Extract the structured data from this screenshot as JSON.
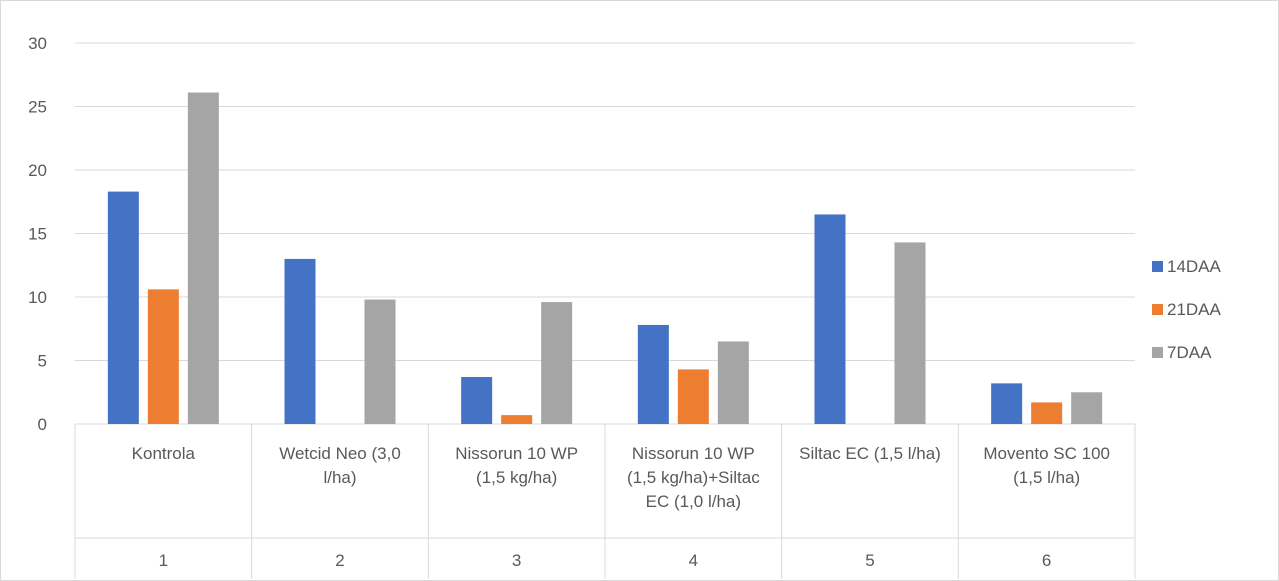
{
  "chart_data": {
    "type": "bar",
    "categories": [
      {
        "number": "1",
        "lines": [
          "Kontrola"
        ]
      },
      {
        "number": "2",
        "lines": [
          "Wetcid Neo (3,0",
          "l/ha)"
        ]
      },
      {
        "number": "3",
        "lines": [
          "Nissorun 10 WP",
          "(1,5 kg/ha)"
        ]
      },
      {
        "number": "4",
        "lines": [
          "Nissorun 10 WP",
          "(1,5 kg/ha)+Siltac",
          "EC (1,0 l/ha)"
        ]
      },
      {
        "number": "5",
        "lines": [
          "Siltac EC (1,5 l/ha)"
        ]
      },
      {
        "number": "6",
        "lines": [
          "Movento SC 100",
          "(1,5 l/ha)"
        ]
      }
    ],
    "series": [
      {
        "name": "14DAA",
        "color": "#4472c4",
        "values": [
          18.3,
          13.0,
          3.7,
          7.8,
          16.5,
          3.2
        ]
      },
      {
        "name": "21DAA",
        "color": "#ed7d31",
        "values": [
          10.6,
          0,
          0.7,
          4.3,
          0,
          1.7
        ]
      },
      {
        "name": "7DAA",
        "color": "#a5a5a5",
        "values": [
          26.1,
          9.8,
          9.6,
          6.5,
          14.3,
          2.5
        ]
      }
    ],
    "ylim": [
      0,
      30
    ],
    "yticks": [
      "0",
      "5",
      "10",
      "15",
      "20",
      "25",
      "30"
    ],
    "grid": true,
    "legend_position": "right",
    "title": "",
    "xlabel": "",
    "ylabel": ""
  }
}
